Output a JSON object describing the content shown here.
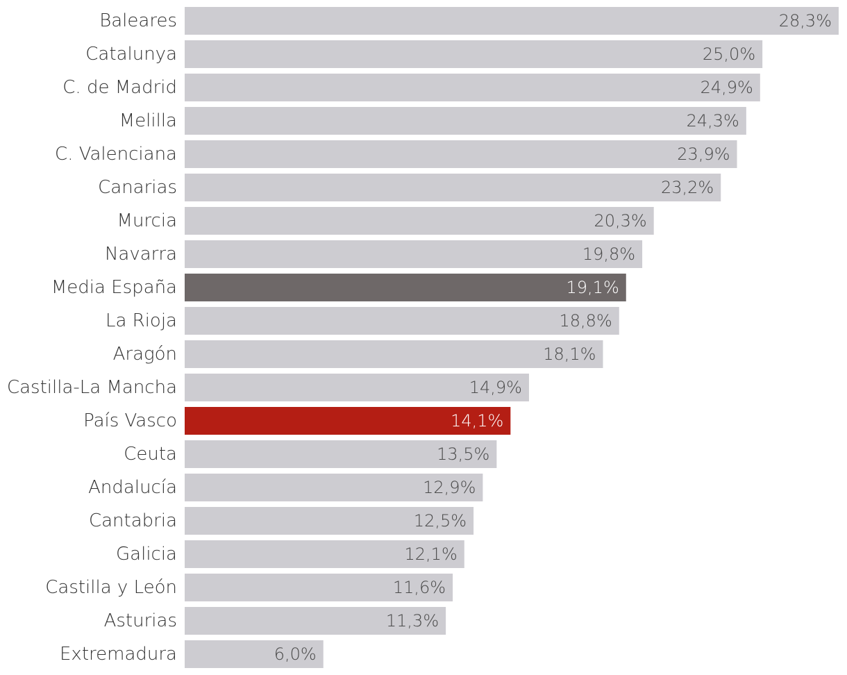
{
  "chart_data": {
    "type": "bar",
    "orientation": "horizontal",
    "categories": [
      "Baleares",
      "Catalunya",
      "C. de Madrid",
      "Melilla",
      "C. Valenciana",
      "Canarias",
      "Murcia",
      "Navarra",
      "Media España",
      "La Rioja",
      "Aragón",
      "Castilla-La Mancha",
      "País Vasco",
      "Ceuta",
      "Andalucía",
      "Cantabria",
      "Galicia",
      "Castilla y León",
      "Asturias",
      "Extremadura"
    ],
    "values": [
      28.3,
      25.0,
      24.9,
      24.3,
      23.9,
      23.2,
      20.3,
      19.8,
      19.1,
      18.8,
      18.1,
      14.9,
      14.1,
      13.5,
      12.9,
      12.5,
      12.1,
      11.6,
      11.3,
      6.0
    ],
    "value_labels": [
      "28,3%",
      "25,0%",
      "24,9%",
      "24,3%",
      "23,9%",
      "23,2%",
      "20,3%",
      "19,8%",
      "19,1%",
      "18,8%",
      "18,1%",
      "14,9%",
      "14,1%",
      "13,5%",
      "12,9%",
      "12,5%",
      "12,1%",
      "11,6%",
      "11,3%",
      "6,0%"
    ],
    "title": "",
    "xlabel": "",
    "ylabel": "",
    "xlim": [
      0,
      28.3
    ],
    "grid": false,
    "legend": "none",
    "highlights": {
      "Media España": "#6e6868",
      "País Vasco": "#b41e14"
    }
  },
  "colors": {
    "default_bar": "#cdccd1",
    "highlight_text": "#ffffff",
    "default_text": "#4a4a4a",
    "category_text": "#333333"
  }
}
